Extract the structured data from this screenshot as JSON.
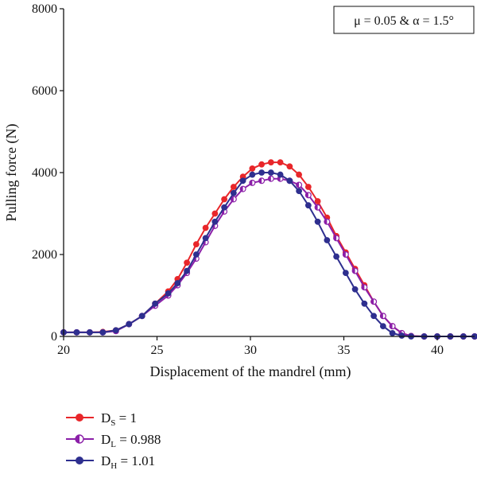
{
  "chart_data": {
    "type": "line",
    "xlabel": "Displacement of the mandrel (mm)",
    "ylabel": "Pulling force (N)",
    "xlim": [
      20,
      42
    ],
    "ylim": [
      0,
      8000
    ],
    "xticks": [
      "20",
      "25",
      "30",
      "35",
      "40"
    ],
    "yticks": [
      "0",
      "2000",
      "4000",
      "6000",
      "8000"
    ],
    "annotation": "μ = 0.05 & α = 1.5°",
    "legend_position": "bottom-left",
    "series": [
      {
        "name": "DS = 1",
        "name_main": "D",
        "name_sub": "S",
        "name_rest": " = 1",
        "color": "#e8262a",
        "marker": "filled-circle",
        "x": [
          20,
          20.7,
          21.4,
          22.1,
          22.8,
          23.5,
          24.2,
          24.9,
          25.6,
          26.1,
          26.6,
          27.1,
          27.6,
          28.1,
          28.6,
          29.1,
          29.6,
          30.1,
          30.6,
          31.1,
          31.6,
          32.1,
          32.6,
          33.1,
          33.6,
          34.1,
          34.6,
          35.1,
          35.6,
          36.1,
          36.6,
          37.1,
          37.6,
          38.1,
          38.6,
          39.3,
          40,
          40.7,
          41.4,
          42
        ],
        "y": [
          100,
          100,
          100,
          110,
          150,
          300,
          500,
          800,
          1100,
          1400,
          1800,
          2250,
          2650,
          3000,
          3350,
          3650,
          3900,
          4100,
          4200,
          4250,
          4250,
          4150,
          3950,
          3650,
          3300,
          2900,
          2450,
          2050,
          1650,
          1250,
          850,
          500,
          250,
          80,
          10,
          0,
          0,
          0,
          0,
          0
        ]
      },
      {
        "name": "DL = 0.988",
        "name_main": "D",
        "name_sub": "L",
        "name_rest": " = 0.988",
        "color": "#8b1fa8",
        "marker": "half-circle",
        "x": [
          20,
          20.7,
          21.4,
          22.1,
          22.8,
          23.5,
          24.2,
          24.9,
          25.6,
          26.1,
          26.6,
          27.1,
          27.6,
          28.1,
          28.6,
          29.1,
          29.6,
          30.1,
          30.6,
          31.1,
          31.6,
          32.1,
          32.6,
          33.1,
          33.6,
          34.1,
          34.6,
          35.1,
          35.6,
          36.1,
          36.6,
          37.1,
          37.6,
          38.1,
          38.6,
          39.3,
          40,
          40.7,
          41.4,
          42
        ],
        "y": [
          100,
          100,
          100,
          100,
          130,
          300,
          500,
          750,
          1000,
          1250,
          1550,
          1900,
          2300,
          2700,
          3050,
          3350,
          3600,
          3750,
          3800,
          3850,
          3850,
          3800,
          3700,
          3450,
          3150,
          2800,
          2400,
          2000,
          1600,
          1200,
          850,
          500,
          250,
          80,
          10,
          0,
          0,
          0,
          0,
          0
        ]
      },
      {
        "name": "DH = 1.01",
        "name_main": "D",
        "name_sub": "H",
        "name_rest": " = 1.01",
        "color": "#2e2f8f",
        "marker": "filled-circle",
        "x": [
          20,
          20.7,
          21.4,
          22.1,
          22.8,
          23.5,
          24.2,
          24.9,
          25.6,
          26.1,
          26.6,
          27.1,
          27.6,
          28.1,
          28.6,
          29.1,
          29.6,
          30.1,
          30.6,
          31.1,
          31.6,
          32.1,
          32.6,
          33.1,
          33.6,
          34.1,
          34.6,
          35.1,
          35.6,
          36.1,
          36.6,
          37.1,
          37.6,
          38.1,
          38.6,
          39.3,
          40,
          40.7,
          41.4,
          42
        ],
        "y": [
          100,
          100,
          100,
          100,
          150,
          300,
          500,
          800,
          1050,
          1300,
          1600,
          2000,
          2400,
          2800,
          3150,
          3500,
          3800,
          3950,
          4000,
          4000,
          3950,
          3800,
          3550,
          3200,
          2800,
          2350,
          1950,
          1550,
          1150,
          800,
          500,
          250,
          80,
          20,
          0,
          0,
          0,
          0,
          0,
          0
        ]
      }
    ]
  }
}
